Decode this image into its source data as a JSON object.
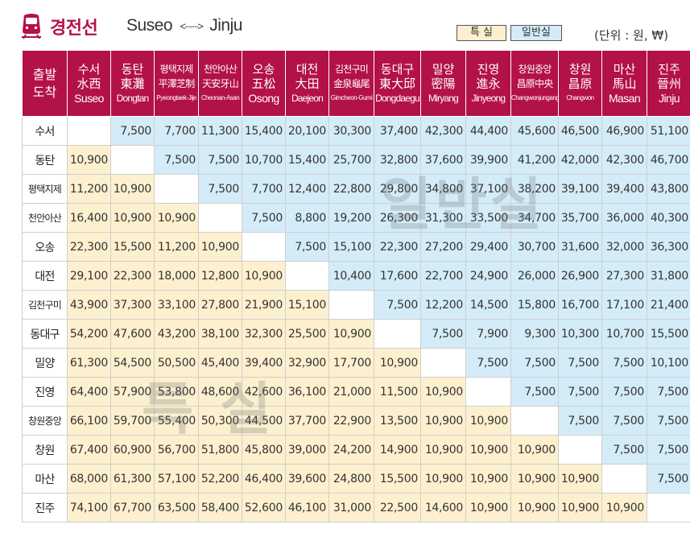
{
  "header": {
    "line_name": "경전선",
    "origin": "Suseo",
    "arrow": "<·······>",
    "destination": "Jinju"
  },
  "legend": {
    "first_class": "특 실",
    "general_class": "일반실",
    "first_color": "#fdf0cf",
    "general_color": "#d3ecf8",
    "header_color": "#b3114a"
  },
  "unit": "(단위 : 원, ₩)",
  "corner": {
    "line1": "출발",
    "line2": "도착"
  },
  "stations": [
    {
      "ko": "수서",
      "hanja": "水西",
      "en": "Suseo"
    },
    {
      "ko": "동탄",
      "hanja": "東灘",
      "en": "Dongtan"
    },
    {
      "ko": "평택지제",
      "hanja": "平澤芝制",
      "en": "Pyeongtaek-Jije"
    },
    {
      "ko": "천안아산",
      "hanja": "天安牙山",
      "en": "Cheonan-Asan"
    },
    {
      "ko": "오송",
      "hanja": "五松",
      "en": "Osong"
    },
    {
      "ko": "대전",
      "hanja": "大田",
      "en": "Daejeon"
    },
    {
      "ko": "김천구미",
      "hanja": "金泉龜尾",
      "en": "Gimcheon-Gumi"
    },
    {
      "ko": "동대구",
      "hanja": "東大邱",
      "en": "Dongdaegu"
    },
    {
      "ko": "밀양",
      "hanja": "密陽",
      "en": "Miryang"
    },
    {
      "ko": "진영",
      "hanja": "進永",
      "en": "Jinyeong"
    },
    {
      "ko": "창원중앙",
      "hanja": "昌原中央",
      "en": "Changwonjungang"
    },
    {
      "ko": "창원",
      "hanja": "昌原",
      "en": "Changwon"
    },
    {
      "ko": "마산",
      "hanja": "馬山",
      "en": "Masan"
    },
    {
      "ko": "진주",
      "hanja": "晉州",
      "en": "Jinju"
    }
  ],
  "fares": [
    [
      "",
      "7,500",
      "7,700",
      "11,300",
      "15,400",
      "20,100",
      "30,300",
      "37,400",
      "42,300",
      "44,400",
      "45,600",
      "46,500",
      "46,900",
      "51,100"
    ],
    [
      "10,900",
      "",
      "7,500",
      "7,500",
      "10,700",
      "15,400",
      "25,700",
      "32,800",
      "37,600",
      "39,900",
      "41,200",
      "42,000",
      "42,300",
      "46,700"
    ],
    [
      "11,200",
      "10,900",
      "",
      "7,500",
      "7,700",
      "12,400",
      "22,800",
      "29,800",
      "34,800",
      "37,100",
      "38,200",
      "39,100",
      "39,400",
      "43,800"
    ],
    [
      "16,400",
      "10,900",
      "10,900",
      "",
      "7,500",
      "8,800",
      "19,200",
      "26,300",
      "31,300",
      "33,500",
      "34,700",
      "35,700",
      "36,000",
      "40,300"
    ],
    [
      "22,300",
      "15,500",
      "11,200",
      "10,900",
      "",
      "7,500",
      "15,100",
      "22,300",
      "27,200",
      "29,400",
      "30,700",
      "31,600",
      "32,000",
      "36,300"
    ],
    [
      "29,100",
      "22,300",
      "18,000",
      "12,800",
      "10,900",
      "",
      "10,400",
      "17,600",
      "22,700",
      "24,900",
      "26,000",
      "26,900",
      "27,300",
      "31,800"
    ],
    [
      "43,900",
      "37,300",
      "33,100",
      "27,800",
      "21,900",
      "15,100",
      "",
      "7,500",
      "12,200",
      "14,500",
      "15,800",
      "16,700",
      "17,100",
      "21,400"
    ],
    [
      "54,200",
      "47,600",
      "43,200",
      "38,100",
      "32,300",
      "25,500",
      "10,900",
      "",
      "7,500",
      "7,900",
      "9,300",
      "10,300",
      "10,700",
      "15,500"
    ],
    [
      "61,300",
      "54,500",
      "50,500",
      "45,400",
      "39,400",
      "32,900",
      "17,700",
      "10,900",
      "",
      "7,500",
      "7,500",
      "7,500",
      "7,500",
      "10,100"
    ],
    [
      "64,400",
      "57,900",
      "53,800",
      "48,600",
      "42,600",
      "36,100",
      "21,000",
      "11,500",
      "10,900",
      "",
      "7,500",
      "7,500",
      "7,500",
      "7,500"
    ],
    [
      "66,100",
      "59,700",
      "55,400",
      "50,300",
      "44,500",
      "37,700",
      "22,900",
      "13,500",
      "10,900",
      "10,900",
      "",
      "7,500",
      "7,500",
      "7,500"
    ],
    [
      "67,400",
      "60,900",
      "56,700",
      "51,800",
      "45,800",
      "39,000",
      "24,200",
      "14,900",
      "10,900",
      "10,900",
      "10,900",
      "",
      "7,500",
      "7,500"
    ],
    [
      "68,000",
      "61,300",
      "57,100",
      "52,200",
      "46,400",
      "39,600",
      "24,800",
      "15,500",
      "10,900",
      "10,900",
      "10,900",
      "10,900",
      "",
      "7,500"
    ],
    [
      "74,100",
      "67,700",
      "63,500",
      "58,400",
      "52,600",
      "46,100",
      "31,000",
      "22,500",
      "14,600",
      "10,900",
      "10,900",
      "10,900",
      "10,900",
      ""
    ]
  ],
  "watermarks": {
    "general": "일반실",
    "first": "특 실"
  }
}
